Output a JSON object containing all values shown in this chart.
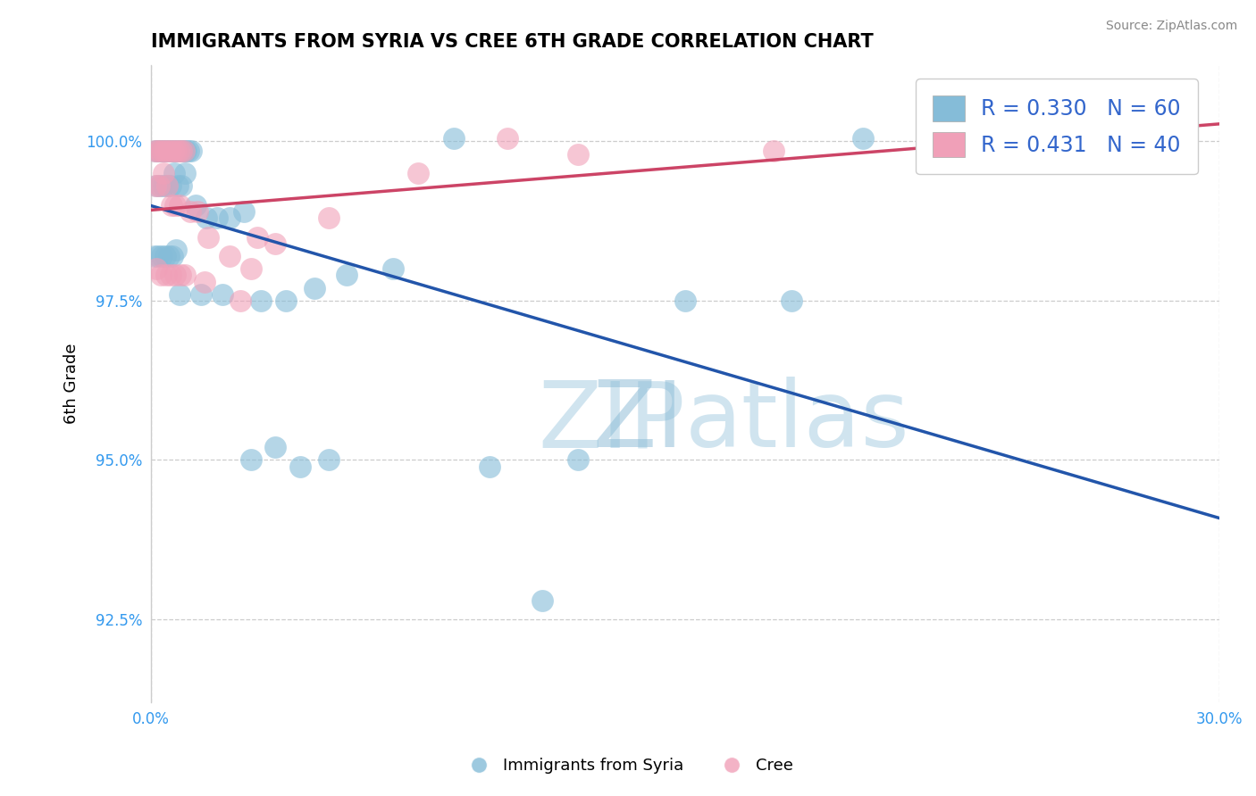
{
  "title": "IMMIGRANTS FROM SYRIA VS CREE 6TH GRADE CORRELATION CHART",
  "source_text": "Source: ZipAtlas.com",
  "ylabel": "6th Grade",
  "blue_color": "#85bcd8",
  "pink_color": "#f0a0b8",
  "blue_line_color": "#2255aa",
  "pink_line_color": "#cc4466",
  "legend_text_color": "#3366cc",
  "xlim": [
    0.0,
    30.0
  ],
  "ylim": [
    91.2,
    101.2
  ],
  "y_ticks": [
    92.5,
    95.0,
    97.5,
    100.0
  ],
  "blue_R": 0.33,
  "blue_N": 60,
  "pink_R": 0.431,
  "pink_N": 40,
  "blue_scatter_x": [
    0.13,
    0.18,
    0.22,
    0.28,
    0.32,
    0.38,
    0.42,
    0.48,
    0.52,
    0.58,
    0.62,
    0.68,
    0.72,
    0.78,
    0.82,
    0.88,
    0.92,
    0.98,
    1.05,
    1.12,
    0.15,
    0.25,
    0.35,
    0.45,
    0.55,
    0.65,
    0.75,
    0.85,
    0.95,
    1.25,
    1.55,
    1.85,
    2.2,
    2.6,
    3.1,
    3.8,
    4.6,
    5.5,
    6.8,
    8.5,
    0.1,
    0.2,
    0.3,
    0.4,
    0.5,
    0.6,
    0.7,
    0.8,
    1.4,
    2.0,
    2.8,
    3.5,
    4.2,
    5.0,
    9.5,
    11.0,
    12.0,
    15.0,
    18.0,
    20.0
  ],
  "blue_scatter_y": [
    99.85,
    99.85,
    99.85,
    99.85,
    99.85,
    99.85,
    99.85,
    99.85,
    99.85,
    99.85,
    99.85,
    99.85,
    99.85,
    99.85,
    99.85,
    99.85,
    99.85,
    99.85,
    99.85,
    99.85,
    99.3,
    99.3,
    99.3,
    99.3,
    99.3,
    99.5,
    99.3,
    99.3,
    99.5,
    99.0,
    98.8,
    98.8,
    98.8,
    98.9,
    97.5,
    97.5,
    97.7,
    97.9,
    98.0,
    100.05,
    98.2,
    98.2,
    98.2,
    98.2,
    98.2,
    98.2,
    98.3,
    97.6,
    97.6,
    97.6,
    95.0,
    95.2,
    94.9,
    95.0,
    94.9,
    92.8,
    95.0,
    97.5,
    97.5,
    100.05
  ],
  "pink_scatter_x": [
    0.1,
    0.18,
    0.25,
    0.32,
    0.4,
    0.48,
    0.55,
    0.62,
    0.7,
    0.78,
    0.85,
    0.92,
    0.12,
    0.22,
    0.35,
    0.45,
    0.58,
    0.68,
    0.8,
    1.1,
    1.3,
    1.6,
    2.2,
    2.8,
    3.5,
    5.0,
    7.5,
    10.0,
    12.0,
    17.5,
    0.15,
    0.28,
    0.42,
    0.55,
    0.68,
    0.82,
    0.95,
    1.5,
    2.5,
    3.0
  ],
  "pink_scatter_y": [
    99.85,
    99.85,
    99.85,
    99.85,
    99.85,
    99.85,
    99.85,
    99.85,
    99.85,
    99.85,
    99.85,
    99.85,
    99.3,
    99.3,
    99.5,
    99.3,
    99.0,
    99.0,
    99.0,
    98.9,
    98.9,
    98.5,
    98.2,
    98.0,
    98.4,
    98.8,
    99.5,
    100.05,
    99.8,
    99.85,
    98.0,
    97.9,
    97.9,
    97.9,
    97.9,
    97.9,
    97.9,
    97.8,
    97.5,
    98.5
  ]
}
